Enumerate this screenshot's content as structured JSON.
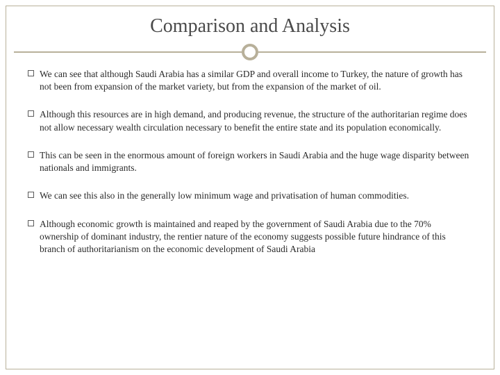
{
  "title": "Comparison and Analysis",
  "colors": {
    "accent": "#b8b09a",
    "text": "#2a2a2a",
    "title_text": "#4a4a4a",
    "background": "#ffffff"
  },
  "typography": {
    "title_fontsize": 28,
    "body_fontsize": 13.5,
    "font_family": "Georgia, serif"
  },
  "bullets": [
    {
      "text": "We can see that although Saudi Arabia has a similar GDP and overall income to Turkey, the nature of growth has not been from expansion of the market variety, but from the expansion of the market of oil."
    },
    {
      "text": " Although this resources are in high demand, and producing revenue, the structure of the authoritarian regime does not allow necessary wealth circulation necessary to benefit the entire state and its population economically."
    },
    {
      "text": "This can be seen in the enormous amount of foreign workers in Saudi Arabia and the huge wage disparity between nationals and immigrants."
    },
    {
      "text": " We can see this also in the generally low minimum wage and privatisation of human commodities."
    },
    {
      "text": "Although economic growth is maintained and reaped by the government of Saudi Arabia due to the 70% ownership of dominant industry, the rentier nature of the economy suggests possible future hindrance of this branch of authoritarianism on the economic development of Saudi Arabia"
    }
  ]
}
